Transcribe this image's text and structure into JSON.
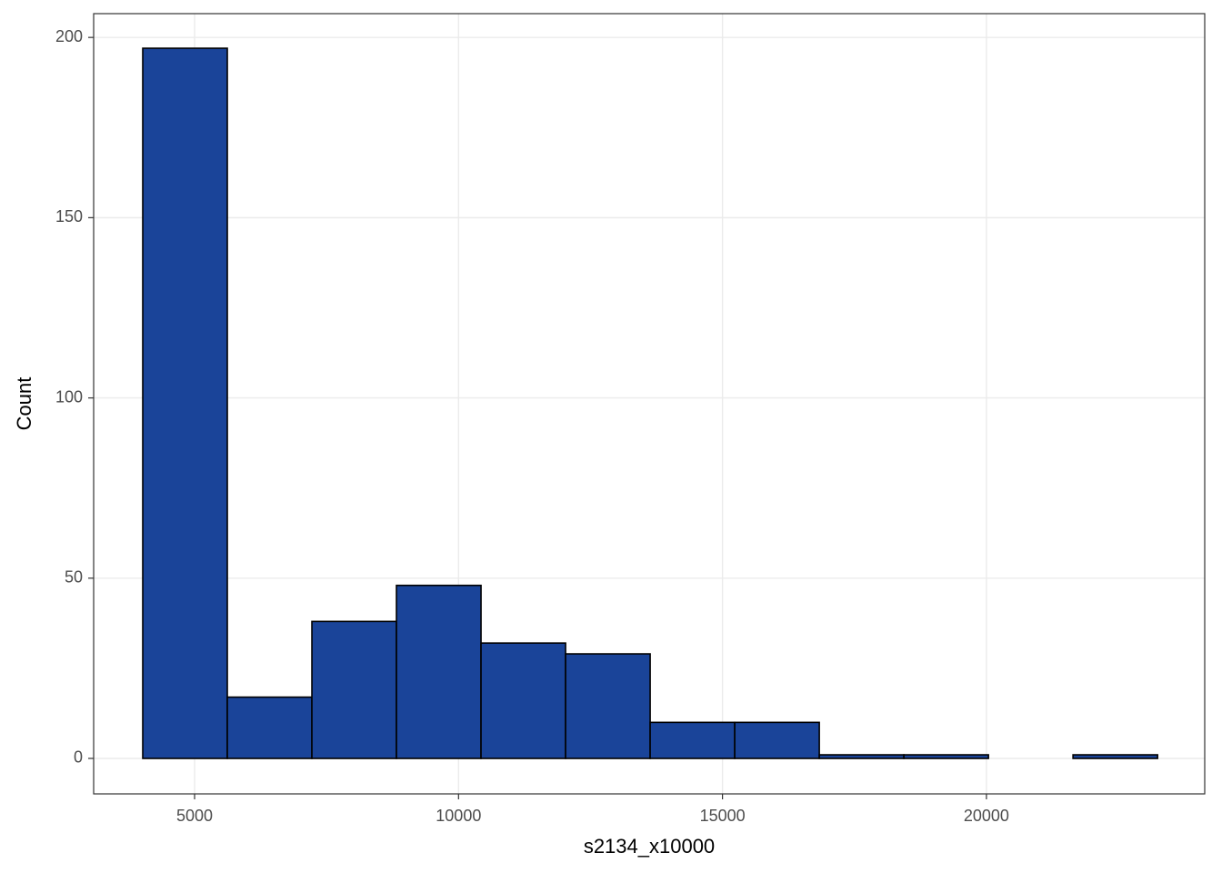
{
  "chart_data": {
    "type": "histogram",
    "x_label": "s2134_x10000",
    "y_label": "Count",
    "bins": [
      4018,
      5620,
      7222,
      8824,
      10426,
      12028,
      13630,
      15232,
      16834,
      18436,
      20038,
      21640,
      23242
    ],
    "values": [
      197,
      17,
      38,
      48,
      32,
      29,
      10,
      10,
      1,
      1,
      0,
      1
    ],
    "color": "#1a4499",
    "edge_color": "#000000",
    "xlim": [
      3088,
      24135
    ],
    "xticks": [
      5000,
      10000,
      15000,
      20000
    ],
    "ylim": [
      -9.84,
      206.6
    ],
    "yticks": [
      0,
      50,
      100,
      150,
      200
    ],
    "grid": true
  }
}
